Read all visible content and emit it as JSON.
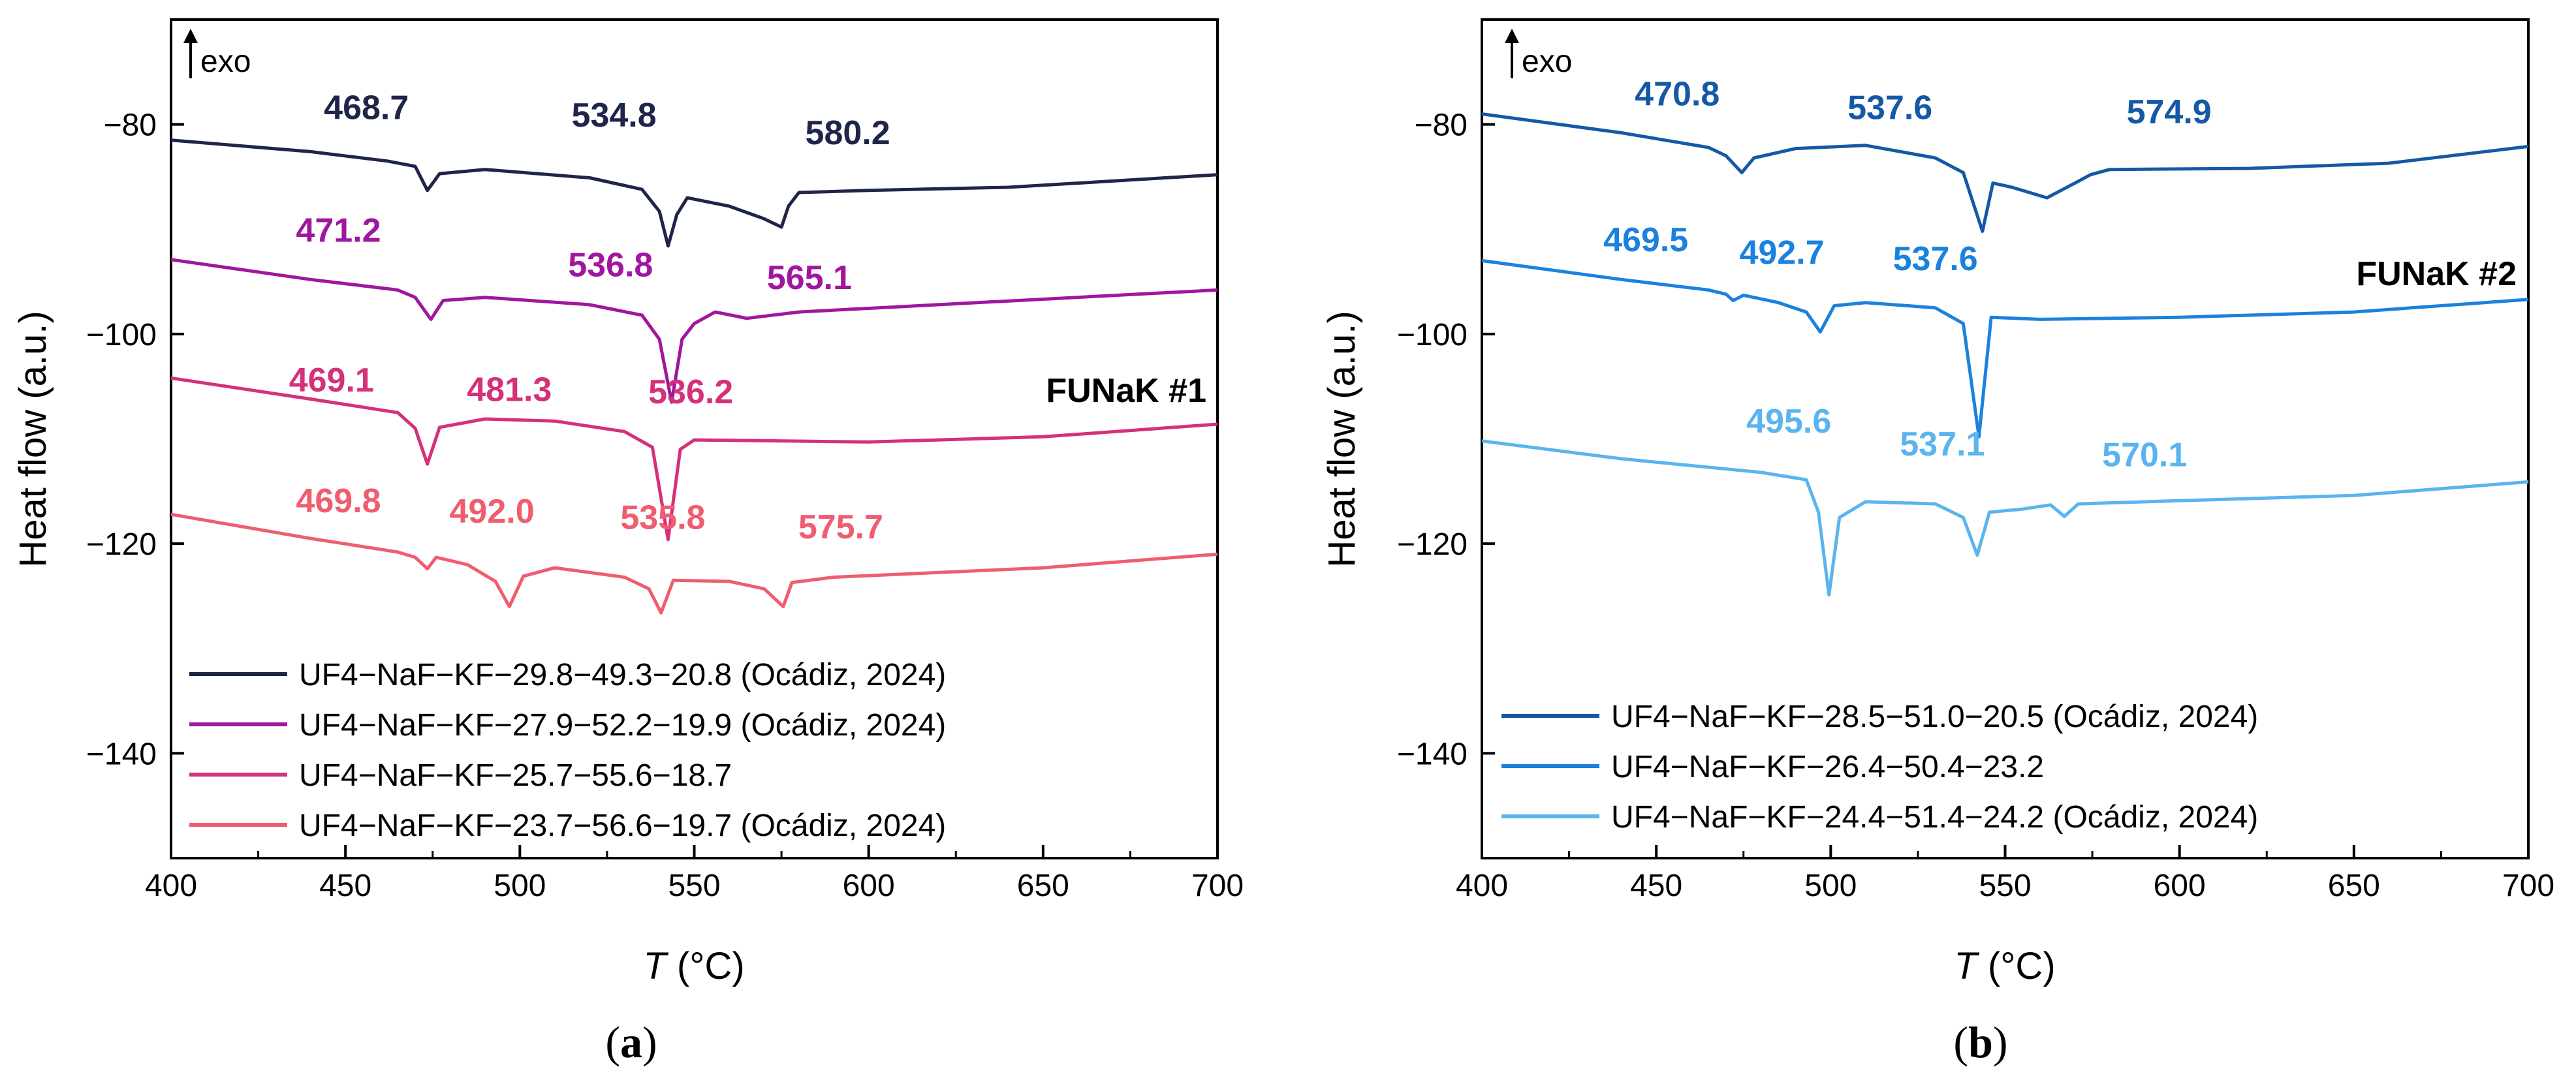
{
  "chart_data": [
    {
      "type": "line",
      "panel": "(a)",
      "panel_letter": "a",
      "annotation": "FUNaK #1",
      "exo_label": "exo",
      "xlabel": "T",
      "xunit": "(°C)",
      "ylabel": "Heat flow (a.u.)",
      "xlim": [
        400,
        700
      ],
      "ylim": [
        -150,
        -70
      ],
      "xticks": [
        400,
        450,
        500,
        550,
        600,
        650,
        700
      ],
      "yticks": [
        -80,
        -100,
        -120,
        -140
      ],
      "xtick_labels": [
        "400",
        "450",
        "500",
        "550",
        "600",
        "650",
        "700"
      ],
      "ytick_labels": [
        "−80",
        "−100",
        "−120",
        "−140"
      ],
      "series": [
        {
          "name": "UF4−NaF−KF−29.8−49.3−20.8 (Ocádiz, 2024)",
          "color": "#1f2549",
          "points": [
            [
              400,
              -81.5
            ],
            [
              440,
              -82.6
            ],
            [
              462,
              -83.5
            ],
            [
              470,
              -84
            ],
            [
              473.5,
              -86.3
            ],
            [
              477,
              -84.7
            ],
            [
              490,
              -84.3
            ],
            [
              520,
              -85.1
            ],
            [
              535,
              -86.2
            ],
            [
              540,
              -88.3
            ],
            [
              542.5,
              -91.6
            ],
            [
              545,
              -88.6
            ],
            [
              548,
              -87.0
            ],
            [
              560,
              -87.8
            ],
            [
              570,
              -89.0
            ],
            [
              575,
              -89.8
            ],
            [
              577,
              -87.8
            ],
            [
              580,
              -86.5
            ],
            [
              600,
              -86.3
            ],
            [
              640,
              -86.0
            ],
            [
              700,
              -84.8
            ]
          ],
          "peaks": [
            {
              "label": "468.7",
              "x": 456,
              "y": -79.5
            },
            {
              "label": "534.8",
              "x": 527,
              "y": -80.2
            },
            {
              "label": "580.2",
              "x": 594,
              "y": -81.9
            }
          ]
        },
        {
          "name": "UF4−NaF−KF−27.9−52.2−19.9 (Ocádiz, 2024)",
          "color": "#a0169f",
          "points": [
            [
              400,
              -92.9
            ],
            [
              440,
              -94.8
            ],
            [
              465,
              -95.8
            ],
            [
              470,
              -96.5
            ],
            [
              474.5,
              -98.6
            ],
            [
              478,
              -96.8
            ],
            [
              490,
              -96.5
            ],
            [
              520,
              -97.2
            ],
            [
              535,
              -98.2
            ],
            [
              540,
              -100.5
            ],
            [
              543.5,
              -106.5
            ],
            [
              546.5,
              -100.5
            ],
            [
              550,
              -99.0
            ],
            [
              556,
              -97.9
            ],
            [
              565,
              -98.5
            ],
            [
              580,
              -97.9
            ],
            [
              620,
              -97.2
            ],
            [
              700,
              -95.8
            ]
          ],
          "peaks": [
            {
              "label": "471.2",
              "x": 448,
              "y": -91.2
            },
            {
              "label": "536.8",
              "x": 526,
              "y": -94.5
            },
            {
              "label": "565.1",
              "x": 583,
              "y": -95.7
            }
          ]
        },
        {
          "name": "UF4−NaF−KF−25.7−55.6−18.7",
          "color": "#d4317a",
          "points": [
            [
              400,
              -104.2
            ],
            [
              440,
              -106.2
            ],
            [
              465,
              -107.5
            ],
            [
              470,
              -109.0
            ],
            [
              473.5,
              -112.4
            ],
            [
              477,
              -108.9
            ],
            [
              490,
              -108.1
            ],
            [
              510,
              -108.3
            ],
            [
              530,
              -109.3
            ],
            [
              538,
              -110.8
            ],
            [
              542.5,
              -119.6
            ],
            [
              546,
              -111.0
            ],
            [
              550,
              -110.1
            ],
            [
              600,
              -110.3
            ],
            [
              650,
              -109.8
            ],
            [
              700,
              -108.6
            ]
          ],
          "peaks": [
            {
              "label": "469.1",
              "x": 446,
              "y": -105.5
            },
            {
              "label": "481.3",
              "x": 497,
              "y": -106.4
            },
            {
              "label": "536.2",
              "x": 549,
              "y": -106.6
            }
          ]
        },
        {
          "name": "UF4−NaF−KF−23.7−56.6−19.7 (Ocádiz, 2024)",
          "color": "#ef5d6f",
          "points": [
            [
              400,
              -117.2
            ],
            [
              440,
              -119.5
            ],
            [
              465,
              -120.8
            ],
            [
              470,
              -121.3
            ],
            [
              473.5,
              -122.4
            ],
            [
              476,
              -121.3
            ],
            [
              485,
              -122.0
            ],
            [
              493,
              -123.6
            ],
            [
              497,
              -126.0
            ],
            [
              501,
              -123.1
            ],
            [
              510,
              -122.3
            ],
            [
              530,
              -123.2
            ],
            [
              537,
              -124.3
            ],
            [
              540.5,
              -126.6
            ],
            [
              544,
              -123.5
            ],
            [
              560,
              -123.6
            ],
            [
              570,
              -124.3
            ],
            [
              575.5,
              -126.0
            ],
            [
              578,
              -123.7
            ],
            [
              590,
              -123.2
            ],
            [
              650,
              -122.3
            ],
            [
              700,
              -121.0
            ]
          ],
          "peaks": [
            {
              "label": "469.8",
              "x": 448,
              "y": -117.0
            },
            {
              "label": "492.0",
              "x": 492,
              "y": -118.0
            },
            {
              "label": "535.8",
              "x": 541,
              "y": -118.6
            },
            {
              "label": "575.7",
              "x": 592,
              "y": -119.5
            }
          ]
        }
      ]
    },
    {
      "type": "line",
      "panel": "(b)",
      "panel_letter": "b",
      "annotation": "FUNaK #2",
      "exo_label": "exo",
      "xlabel": "T",
      "xunit": "(°C)",
      "ylabel": "Heat flow (a.u.)",
      "xlim": [
        400,
        700
      ],
      "ylim": [
        -150,
        -70
      ],
      "xticks": [
        400,
        450,
        500,
        550,
        600,
        650,
        700
      ],
      "yticks": [
        -80,
        -100,
        -120,
        -140
      ],
      "xtick_labels": [
        "400",
        "450",
        "500",
        "550",
        "600",
        "650",
        "700"
      ],
      "ytick_labels": [
        "−80",
        "−100",
        "−120",
        "−140"
      ],
      "series": [
        {
          "name": "UF4−NaF−KF−28.5−51.0−20.5 (Ocádiz, 2024)",
          "color": "#1559a6",
          "points": [
            [
              400,
              -79.0
            ],
            [
              440,
              -80.8
            ],
            [
              465,
              -82.2
            ],
            [
              470,
              -83.0
            ],
            [
              474.5,
              -84.6
            ],
            [
              478,
              -83.2
            ],
            [
              490,
              -82.3
            ],
            [
              510,
              -82.0
            ],
            [
              530,
              -83.2
            ],
            [
              538,
              -84.6
            ],
            [
              543.5,
              -90.2
            ],
            [
              546.5,
              -85.6
            ],
            [
              552,
              -86.0
            ],
            [
              562,
              -87.0
            ],
            [
              570,
              -85.6
            ],
            [
              574.5,
              -84.8
            ],
            [
              580,
              -84.3
            ],
            [
              620,
              -84.2
            ],
            [
              660,
              -83.7
            ],
            [
              700,
              -82.1
            ]
          ],
          "peaks": [
            {
              "label": "470.8",
              "x": 456,
              "y": -78.2
            },
            {
              "label": "537.6",
              "x": 517,
              "y": -79.5
            },
            {
              "label": "574.9",
              "x": 597,
              "y": -79.9
            }
          ]
        },
        {
          "name": "UF4−NaF−KF−26.4−50.4−23.2",
          "color": "#1a82de",
          "points": [
            [
              400,
              -93.0
            ],
            [
              440,
              -94.8
            ],
            [
              465,
              -95.8
            ],
            [
              470,
              -96.2
            ],
            [
              472,
              -96.8
            ],
            [
              475,
              -96.3
            ],
            [
              485,
              -97.0
            ],
            [
              493,
              -97.9
            ],
            [
              497,
              -99.8
            ],
            [
              501,
              -97.3
            ],
            [
              510,
              -97.0
            ],
            [
              530,
              -97.5
            ],
            [
              538,
              -99.0
            ],
            [
              542.5,
              -109.8
            ],
            [
              546,
              -98.4
            ],
            [
              560,
              -98.6
            ],
            [
              600,
              -98.4
            ],
            [
              650,
              -97.9
            ],
            [
              700,
              -96.7
            ]
          ],
          "peaks": [
            {
              "label": "469.5",
              "x": 447,
              "y": -92.1
            },
            {
              "label": "492.7",
              "x": 486,
              "y": -93.3
            },
            {
              "label": "537.6",
              "x": 530,
              "y": -93.9
            }
          ]
        },
        {
          "name": "UF4−NaF−KF−24.4−51.4−24.2 (Ocádiz, 2024)",
          "color": "#5ab4ee",
          "points": [
            [
              400,
              -110.2
            ],
            [
              440,
              -111.9
            ],
            [
              480,
              -113.2
            ],
            [
              493,
              -113.9
            ],
            [
              496.5,
              -117.0
            ],
            [
              499.5,
              -124.9
            ],
            [
              502.5,
              -117.5
            ],
            [
              510,
              -116.0
            ],
            [
              530,
              -116.2
            ],
            [
              538,
              -117.5
            ],
            [
              542,
              -121.1
            ],
            [
              545.5,
              -117.0
            ],
            [
              555,
              -116.7
            ],
            [
              563,
              -116.3
            ],
            [
              567,
              -117.4
            ],
            [
              571,
              -116.2
            ],
            [
              600,
              -115.9
            ],
            [
              650,
              -115.4
            ],
            [
              700,
              -114.1
            ]
          ],
          "peaks": [
            {
              "label": "495.6",
              "x": 488,
              "y": -109.4
            },
            {
              "label": "537.1",
              "x": 532,
              "y": -111.6
            },
            {
              "label": "570.1",
              "x": 590,
              "y": -112.6
            }
          ]
        }
      ]
    }
  ]
}
